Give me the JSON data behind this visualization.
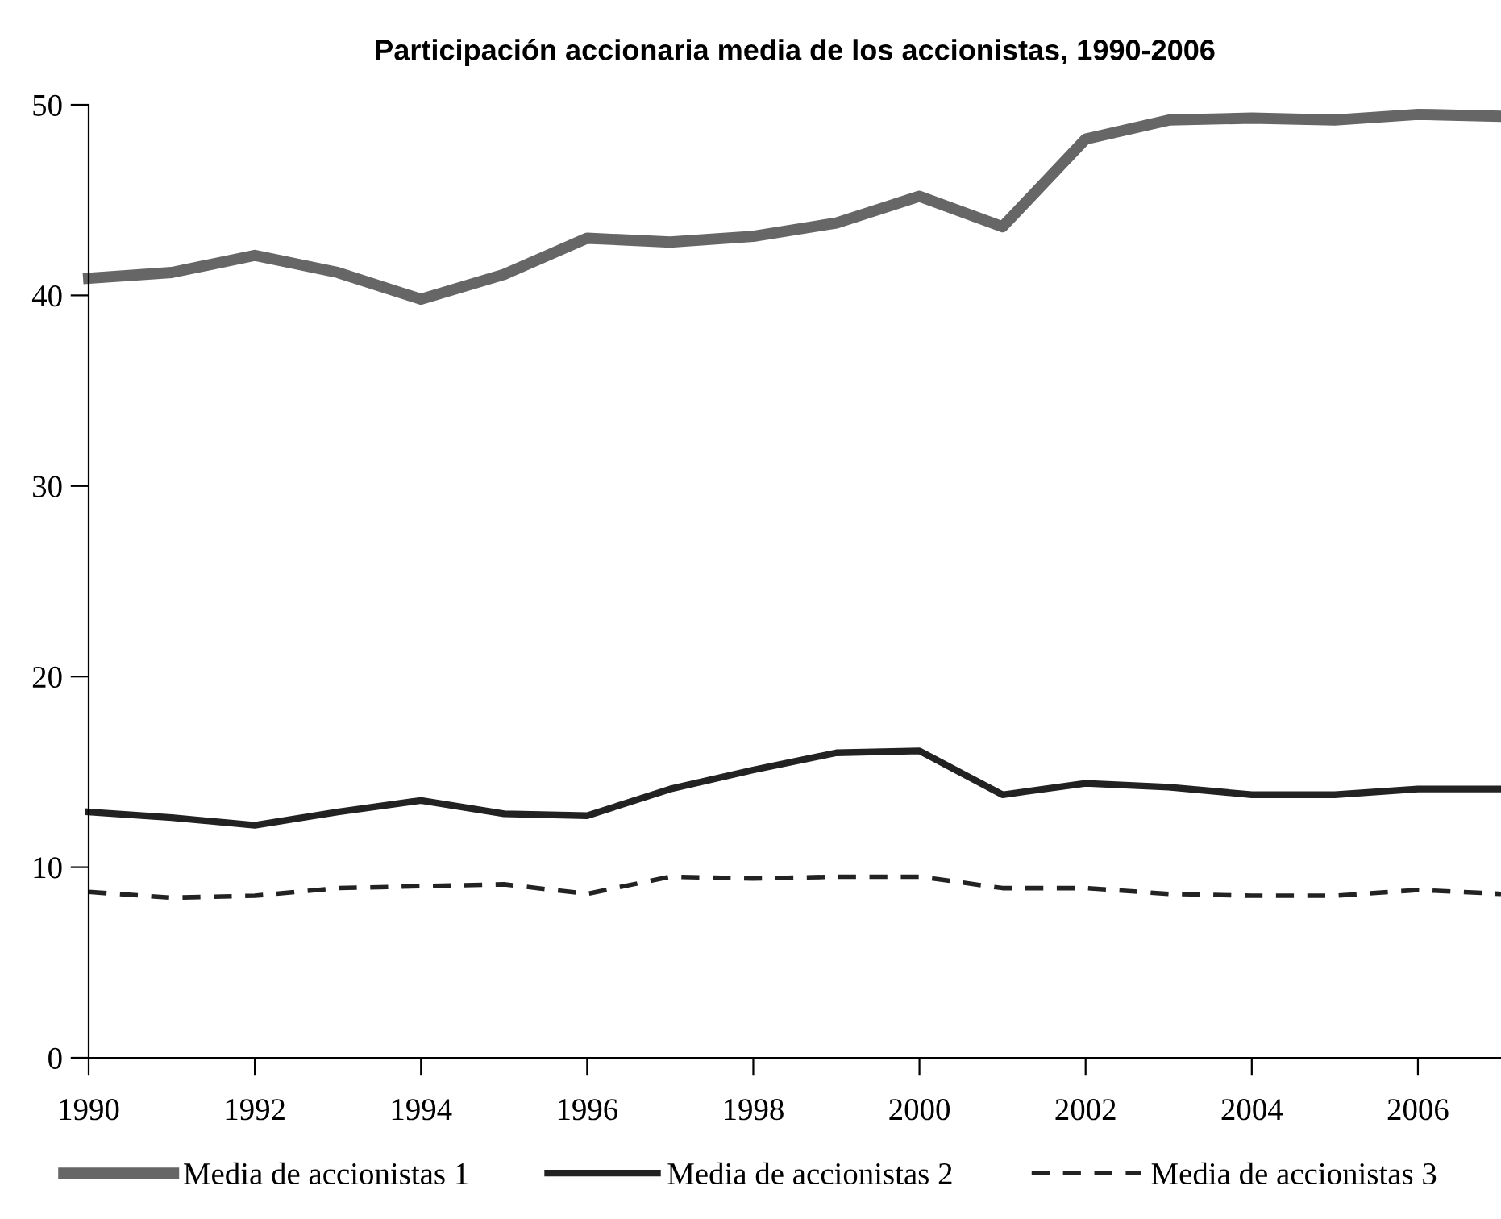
{
  "chart_data": {
    "type": "line",
    "title": "Participación accionaria media de los accionistas, 1990-2006",
    "x": [
      1990,
      1991,
      1992,
      1993,
      1994,
      1995,
      1996,
      1997,
      1998,
      1999,
      2000,
      2001,
      2002,
      2003,
      2004,
      2005,
      2006,
      2007
    ],
    "series": [
      {
        "name": "Media de accionistas 1",
        "color": "#666666",
        "line_style": "solid",
        "values": [
          40.9,
          41.2,
          42.1,
          41.2,
          39.8,
          41.1,
          43.0,
          42.8,
          43.1,
          43.8,
          45.2,
          43.6,
          48.2,
          49.2,
          49.3,
          49.2,
          49.5,
          49.4
        ]
      },
      {
        "name": "Media de accionistas 2",
        "color": "#222222",
        "line_style": "solid",
        "values": [
          12.9,
          12.6,
          12.2,
          12.9,
          13.5,
          12.8,
          12.7,
          14.1,
          15.1,
          16.0,
          16.1,
          13.8,
          14.4,
          14.2,
          13.8,
          13.8,
          14.1,
          14.1
        ]
      },
      {
        "name": "Media de accionistas 3",
        "color": "#222222",
        "line_style": "dashed",
        "values": [
          8.7,
          8.4,
          8.5,
          8.9,
          9.0,
          9.1,
          8.6,
          9.5,
          9.4,
          9.5,
          9.5,
          8.9,
          8.9,
          8.6,
          8.5,
          8.5,
          8.8,
          8.6
        ]
      }
    ],
    "xlim": [
      1990,
      2007
    ],
    "xticks": [
      1990,
      1992,
      1994,
      1996,
      1998,
      2000,
      2002,
      2004,
      2006
    ],
    "ylim": [
      0,
      50
    ],
    "yticks": [
      0,
      10,
      20,
      30,
      40,
      50
    ],
    "grid": false,
    "legend": "bottom",
    "marker": "none"
  }
}
